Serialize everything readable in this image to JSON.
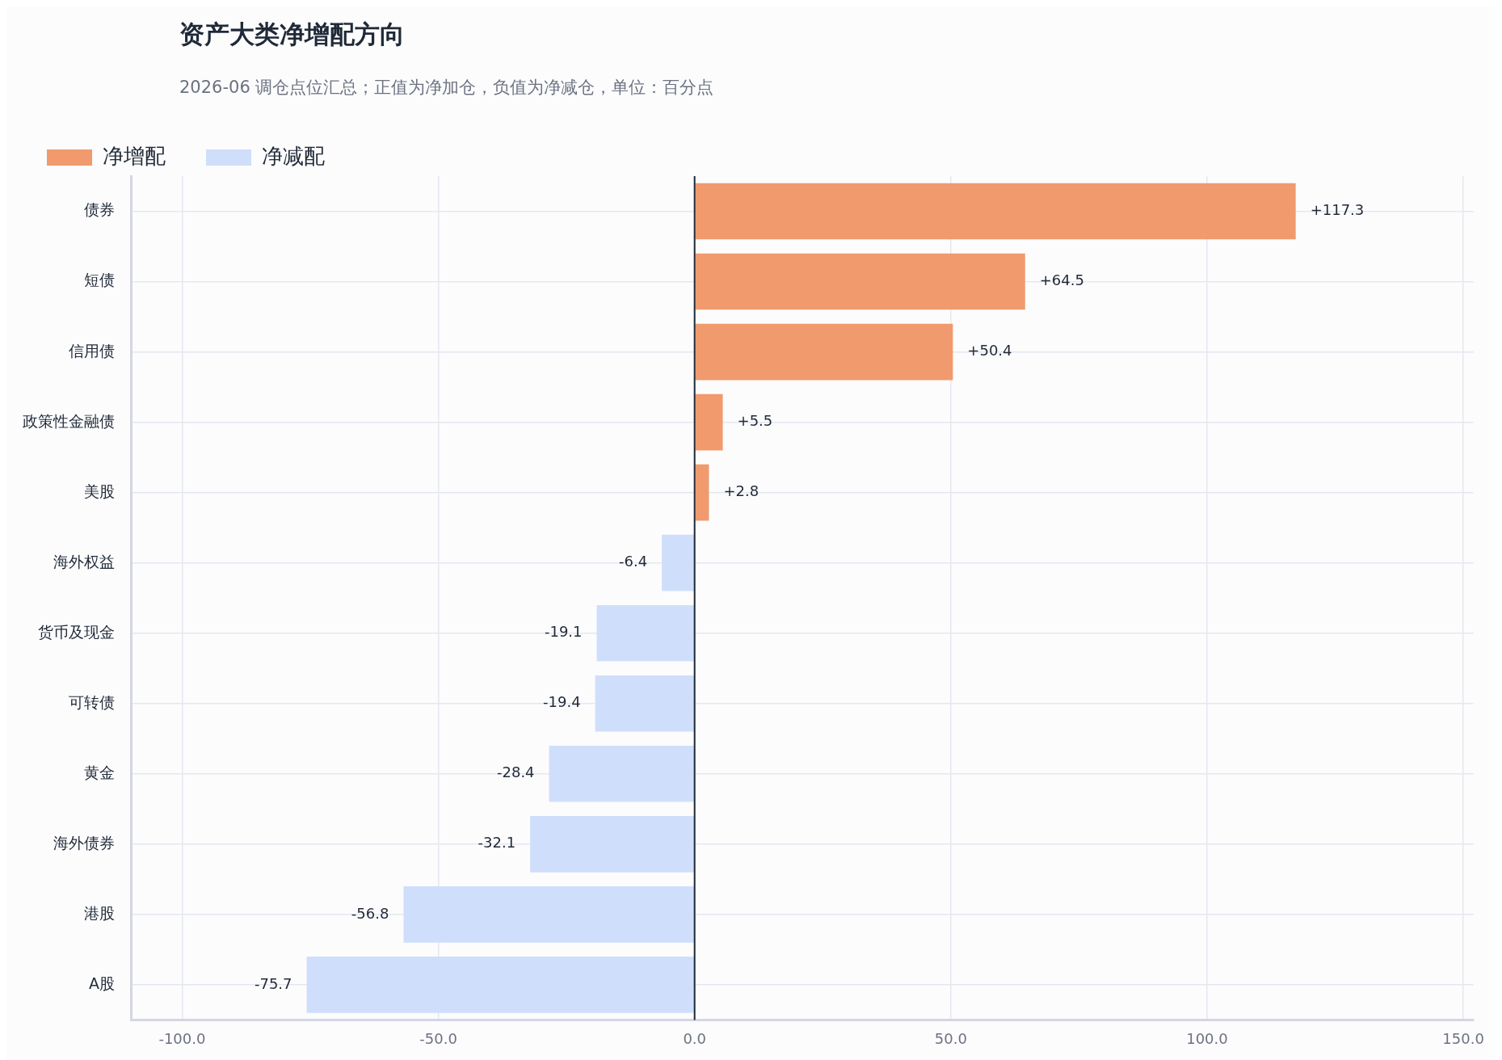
{
  "chart_data": {
    "type": "bar",
    "orientation": "horizontal",
    "title": "资产大类净增配方向",
    "subtitle": "2026-06 调仓点位汇总；正值为净加仓，负值为净减仓，单位：百分点",
    "categories": [
      "债券",
      "短债",
      "信用债",
      "政策性金融债",
      "美股",
      "海外权益",
      "货币及现金",
      "可转债",
      "黄金",
      "海外债券",
      "港股",
      "A股"
    ],
    "series": [
      {
        "name": "净增配",
        "color": "#f09a6e",
        "values": [
          117.3,
          64.5,
          50.4,
          5.5,
          2.8,
          null,
          null,
          null,
          null,
          null,
          null,
          null
        ],
        "value_labels": [
          "+117.3",
          "+64.5",
          "+50.4",
          "+5.5",
          "+2.8",
          null,
          null,
          null,
          null,
          null,
          null,
          null
        ]
      },
      {
        "name": "净减配",
        "color": "#cfdffb",
        "values": [
          null,
          null,
          null,
          null,
          null,
          -6.4,
          -19.1,
          -19.4,
          -28.4,
          -32.1,
          -56.8,
          -75.7
        ],
        "value_labels": [
          null,
          null,
          null,
          null,
          null,
          "-6.4",
          "-19.1",
          "-19.4",
          "-28.4",
          "-32.1",
          "-56.8",
          "-75.7"
        ]
      }
    ],
    "xlim": [
      -110,
      152
    ],
    "xticks": [
      {
        "value": -100,
        "label": "-100.0"
      },
      {
        "value": -50,
        "label": "-50.0"
      },
      {
        "value": 0,
        "label": "0.0"
      },
      {
        "value": 50,
        "label": "50.0"
      },
      {
        "value": 100,
        "label": "100.0"
      },
      {
        "value": 150,
        "label": "150.0"
      }
    ],
    "ref_lines": [
      {
        "axis": "x",
        "value": 0,
        "color": "#1f2937"
      }
    ],
    "grid": true,
    "legend": "top left"
  }
}
